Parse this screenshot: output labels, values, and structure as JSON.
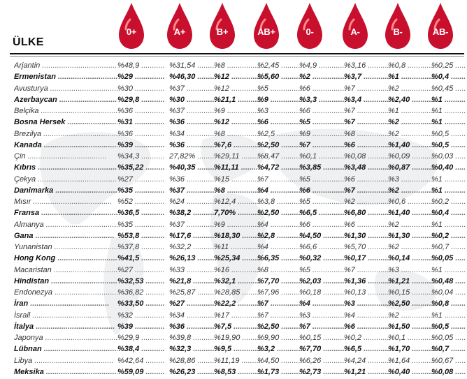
{
  "header": {
    "title": "ÜLKE",
    "blood_types": [
      "0+",
      "A+",
      "B+",
      "AB+",
      "0-",
      "A-",
      "B-",
      "AB-"
    ],
    "drop_color": "#c8102e"
  },
  "rows": [
    {
      "country": "Arjantin",
      "bold": false,
      "values": [
        "%48,9",
        "%31,54",
        "%8",
        "%2,45",
        "%4,9",
        "%3,16",
        "%0,8",
        "%0,25"
      ]
    },
    {
      "country": "Ermenistan",
      "bold": true,
      "values": [
        "%29",
        "%46,30",
        "%12",
        "%5,60",
        "%2",
        "%3,7",
        "%1",
        "%0,4"
      ]
    },
    {
      "country": "Avusturya",
      "bold": false,
      "values": [
        "%30",
        "%37",
        "%12",
        "%5",
        "%6",
        "%7",
        "%2",
        "%0,45"
      ]
    },
    {
      "country": "Azerbaycan",
      "bold": true,
      "values": [
        "%29,8",
        "%30",
        "%21,1",
        "%9",
        "%3,3",
        "%3,4",
        "%2,40",
        "%1"
      ]
    },
    {
      "country": "Belçika",
      "bold": false,
      "values": [
        "%36",
        "%37",
        "%9",
        "%3",
        "%6",
        "%7",
        "%1",
        "%1"
      ]
    },
    {
      "country": "Bosna Hersek",
      "bold": true,
      "values": [
        "%31",
        "%36",
        "%12",
        "%6",
        "%5",
        "%7",
        "%2",
        "%1"
      ]
    },
    {
      "country": "Brezilya",
      "bold": false,
      "values": [
        "%36",
        "%34",
        "%8",
        "%2,5",
        "%9",
        "%8",
        "%2",
        "%0,5"
      ]
    },
    {
      "country": "Kanada",
      "bold": true,
      "values": [
        "%39",
        "%36",
        "%7,6",
        "%2,50",
        "%7",
        "%6",
        "%1,40",
        "%0,5"
      ]
    },
    {
      "country": "Çin",
      "bold": false,
      "values": [
        "%34,3",
        "27,82%",
        "%29,11",
        "%8,47",
        "%0,1",
        "%0,08",
        "%0,09",
        "%0,03"
      ]
    },
    {
      "country": "Kıbrıs",
      "bold": true,
      "values": [
        "%35,22",
        "%40,35",
        "%11,11",
        "%4,72",
        "%3,85",
        "%3,48",
        "%0,87",
        "%0,40"
      ]
    },
    {
      "country": "Çekya",
      "bold": false,
      "values": [
        "%27",
        "%36",
        "%15",
        "%7",
        "%5",
        "%6",
        "%3",
        "%1"
      ]
    },
    {
      "country": "Danimarka",
      "bold": true,
      "values": [
        "%35",
        "%37",
        "%8",
        "%4",
        "%6",
        "%7",
        "%2",
        "%1"
      ]
    },
    {
      "country": "Mısır",
      "bold": false,
      "values": [
        "%52",
        "%24",
        "%12,4",
        "%3,8",
        "%5",
        "%2",
        "%0,6",
        "%0,2"
      ]
    },
    {
      "country": "Fransa",
      "bold": true,
      "values": [
        "%36,5",
        "%38,2",
        "7,70%",
        "%2,50",
        "%6,5",
        "%6,80",
        "%1,40",
        "%0,4"
      ]
    },
    {
      "country": "Almanya",
      "bold": false,
      "values": [
        "%35",
        "%37",
        "%9",
        "%4",
        "%6",
        "%6",
        "%2",
        "%1"
      ]
    },
    {
      "country": "Gana",
      "bold": true,
      "values": [
        "%53,8",
        "%17,6",
        "%18,30",
        "%2,8",
        "%4,50",
        "%1,30",
        "%1,30",
        "%0,2"
      ]
    },
    {
      "country": "Yunanistan",
      "bold": false,
      "values": [
        "%37,8",
        "%32,2",
        "%11",
        "%4",
        "%6,6",
        "%5,70",
        "%2",
        "%0,7"
      ]
    },
    {
      "country": "Hong Kong",
      "bold": true,
      "values": [
        "%41,5",
        "%26,13",
        "%25,34",
        "%6,35",
        "%0,32",
        "%0,17",
        "%0,14",
        "%0,05"
      ]
    },
    {
      "country": "Macaristan",
      "bold": false,
      "values": [
        "%27",
        "%33",
        "%16",
        "%8",
        "%5",
        "%7",
        "%3",
        "%1"
      ]
    },
    {
      "country": "Hindistan",
      "bold": true,
      "values": [
        "%32,53",
        "%21,8",
        "%32,1",
        "%7,70",
        "%2,03",
        "%1,36",
        "%1,21",
        "%0,48"
      ]
    },
    {
      "country": "Endonezya",
      "bold": false,
      "values": [
        "%36,82",
        "%25,87",
        "%28,85",
        "%7,96",
        "%0,18",
        "%0,13",
        "%0,15",
        "%0,04"
      ]
    },
    {
      "country": "İran",
      "bold": true,
      "values": [
        "%33,50",
        "%27",
        "%22,2",
        "%7",
        "%4",
        "%3",
        "%2,50",
        "%0,8"
      ]
    },
    {
      "country": "İsrail",
      "bold": false,
      "values": [
        "%32",
        "%34",
        "%17",
        "%7",
        "%3",
        "%4",
        "%2",
        "%1"
      ]
    },
    {
      "country": "İtalya",
      "bold": true,
      "values": [
        "%39",
        "%36",
        "%7,5",
        "%2,50",
        "%7",
        "%6",
        "%1,50",
        "%0,5"
      ]
    },
    {
      "country": "Japonya",
      "bold": false,
      "values": [
        "%29,9",
        "%39,8",
        "%19,90",
        "%9,90",
        "%0,15",
        "%0,2",
        "%0,1",
        "%0,05"
      ]
    },
    {
      "country": "Lübnan",
      "bold": true,
      "values": [
        "%38,4",
        "%32,3",
        "%9,5",
        "%3,2",
        "%7,70",
        "%6,5",
        "%1,70",
        "%0,7"
      ]
    },
    {
      "country": "Libya",
      "bold": false,
      "values": [
        "%42,64",
        "%28,86",
        "%11,19",
        "%4,50",
        "%6,26",
        "%4,24",
        "%1,64",
        "%0,67"
      ]
    },
    {
      "country": "Meksika",
      "bold": true,
      "values": [
        "%59,09",
        "%26,23",
        "%8,53",
        "%1,73",
        "%2,73",
        "%1,21",
        "%0,40",
        "%0,08"
      ]
    }
  ]
}
